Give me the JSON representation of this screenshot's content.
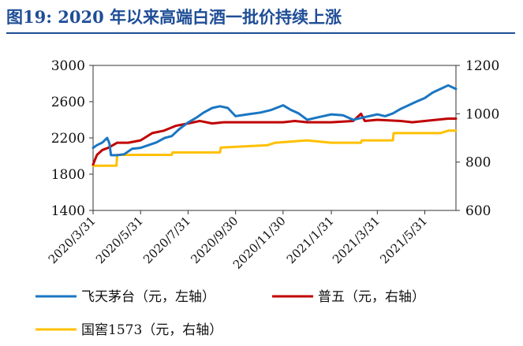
{
  "title": "图19:  2020 年以来高端白酒一批价持续上涨",
  "chart_data": {
    "type": "line",
    "title": "图19:  2020 年以来高端白酒一批价持续上涨",
    "xlabel": "",
    "ylabel": "",
    "x_tick_labels": [
      "2020/3/31",
      "2020/5/31",
      "2020/7/31",
      "2020/9/30",
      "2020/11/30",
      "2021/1/31",
      "2021/3/31",
      "2021/5/31"
    ],
    "x_range": [
      "2020-03-31",
      "2021-07-10"
    ],
    "y_left": {
      "ylim": [
        1400,
        3000
      ],
      "ticks": [
        "1400",
        "1800",
        "2200",
        "2600",
        "3000"
      ]
    },
    "y_right": {
      "ylim": [
        600,
        1200
      ],
      "ticks": [
        "600",
        "800",
        "1000",
        "1200"
      ]
    },
    "grid": false,
    "legend_placement": "bottom",
    "series": [
      {
        "name": "飞天茅台（元，左轴）",
        "axis": "left",
        "color": "#1a76c2",
        "points": [
          [
            "2020-03-31",
            2090
          ],
          [
            "2020-04-05",
            2120
          ],
          [
            "2020-04-12",
            2150
          ],
          [
            "2020-04-18",
            2200
          ],
          [
            "2020-04-21",
            2140
          ],
          [
            "2020-04-23",
            2010
          ],
          [
            "2020-05-01",
            2010
          ],
          [
            "2020-05-10",
            2020
          ],
          [
            "2020-05-20",
            2080
          ],
          [
            "2020-05-31",
            2090
          ],
          [
            "2020-06-10",
            2120
          ],
          [
            "2020-06-20",
            2150
          ],
          [
            "2020-07-01",
            2200
          ],
          [
            "2020-07-10",
            2220
          ],
          [
            "2020-07-20",
            2300
          ],
          [
            "2020-07-31",
            2370
          ],
          [
            "2020-08-10",
            2420
          ],
          [
            "2020-08-20",
            2480
          ],
          [
            "2020-08-31",
            2530
          ],
          [
            "2020-09-10",
            2550
          ],
          [
            "2020-09-20",
            2530
          ],
          [
            "2020-09-30",
            2440
          ],
          [
            "2020-10-15",
            2460
          ],
          [
            "2020-11-01",
            2480
          ],
          [
            "2020-11-15",
            2510
          ],
          [
            "2020-11-30",
            2560
          ],
          [
            "2020-12-10",
            2510
          ],
          [
            "2020-12-20",
            2470
          ],
          [
            "2020-12-31",
            2400
          ],
          [
            "2021-01-15",
            2430
          ],
          [
            "2021-01-31",
            2460
          ],
          [
            "2021-02-15",
            2450
          ],
          [
            "2021-02-28",
            2400
          ],
          [
            "2021-03-15",
            2430
          ],
          [
            "2021-03-31",
            2460
          ],
          [
            "2021-04-10",
            2440
          ],
          [
            "2021-04-20",
            2470
          ],
          [
            "2021-04-30",
            2520
          ],
          [
            "2021-05-10",
            2560
          ],
          [
            "2021-05-20",
            2600
          ],
          [
            "2021-05-31",
            2640
          ],
          [
            "2021-06-10",
            2700
          ],
          [
            "2021-06-20",
            2740
          ],
          [
            "2021-06-30",
            2780
          ],
          [
            "2021-07-10",
            2740
          ]
        ]
      },
      {
        "name": "普五（元，右轴）",
        "axis": "right",
        "color": "#c00000",
        "points": [
          [
            "2020-03-31",
            790
          ],
          [
            "2020-04-05",
            830
          ],
          [
            "2020-04-12",
            850
          ],
          [
            "2020-04-20",
            860
          ],
          [
            "2020-05-01",
            880
          ],
          [
            "2020-05-15",
            880
          ],
          [
            "2020-05-31",
            890
          ],
          [
            "2020-06-15",
            920
          ],
          [
            "2020-06-30",
            930
          ],
          [
            "2020-07-15",
            950
          ],
          [
            "2020-07-31",
            960
          ],
          [
            "2020-08-15",
            970
          ],
          [
            "2020-08-31",
            960
          ],
          [
            "2020-09-15",
            965
          ],
          [
            "2020-09-30",
            965
          ],
          [
            "2020-10-31",
            965
          ],
          [
            "2020-11-30",
            965
          ],
          [
            "2020-12-15",
            970
          ],
          [
            "2020-12-31",
            965
          ],
          [
            "2021-01-31",
            965
          ],
          [
            "2021-02-28",
            970
          ],
          [
            "2021-03-10",
            1000
          ],
          [
            "2021-03-15",
            970
          ],
          [
            "2021-03-31",
            975
          ],
          [
            "2021-04-30",
            970
          ],
          [
            "2021-05-15",
            965
          ],
          [
            "2021-05-31",
            970
          ],
          [
            "2021-06-15",
            975
          ],
          [
            "2021-06-30",
            980
          ],
          [
            "2021-07-10",
            980
          ]
        ]
      },
      {
        "name": "国窖1573（元，右轴）",
        "axis": "right",
        "color": "#ffc000",
        "points": [
          [
            "2020-03-31",
            785
          ],
          [
            "2020-04-30",
            785
          ],
          [
            "2020-05-01",
            830
          ],
          [
            "2020-07-10",
            830
          ],
          [
            "2020-07-11",
            840
          ],
          [
            "2020-09-10",
            840
          ],
          [
            "2020-09-11",
            860
          ],
          [
            "2020-11-10",
            870
          ],
          [
            "2020-11-20",
            880
          ],
          [
            "2020-12-31",
            890
          ],
          [
            "2021-01-31",
            880
          ],
          [
            "2021-03-10",
            880
          ],
          [
            "2021-03-11",
            890
          ],
          [
            "2021-04-20",
            890
          ],
          [
            "2021-04-21",
            920
          ],
          [
            "2021-05-31",
            920
          ],
          [
            "2021-06-20",
            920
          ],
          [
            "2021-06-30",
            930
          ],
          [
            "2021-07-10",
            930
          ]
        ]
      }
    ]
  }
}
